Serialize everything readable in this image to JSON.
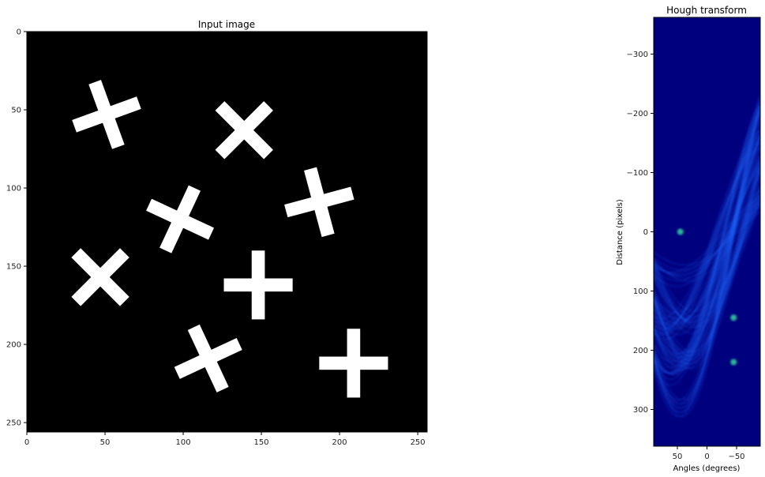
{
  "chart_data": [
    {
      "type": "image",
      "title": "Input image",
      "xlabel": "",
      "ylabel": "",
      "xlim": [
        0,
        256
      ],
      "ylim": [
        256,
        0
      ],
      "xticks": [
        0,
        50,
        100,
        150,
        200,
        250
      ],
      "yticks": [
        0,
        50,
        100,
        150,
        200,
        250
      ],
      "background": "#000000",
      "foreground": "#ffffff",
      "crosses": [
        {
          "cx": 51,
          "cy": 53,
          "angle_deg": -20
        },
        {
          "cx": 139,
          "cy": 63,
          "angle_deg": 45
        },
        {
          "cx": 98,
          "cy": 120,
          "angle_deg": 25
        },
        {
          "cx": 187,
          "cy": 109,
          "angle_deg": -15
        },
        {
          "cx": 47,
          "cy": 157,
          "angle_deg": 45
        },
        {
          "cx": 148,
          "cy": 162,
          "angle_deg": 0
        },
        {
          "cx": 116,
          "cy": 209,
          "angle_deg": -25
        },
        {
          "cx": 209,
          "cy": 212,
          "angle_deg": 0
        }
      ]
    },
    {
      "type": "heatmap",
      "title": "Hough transform",
      "xlabel": "Angles (degrees)",
      "ylabel": "Distance (pixels)",
      "xlim": [
        90,
        -90
      ],
      "ylim": [
        362,
        -362
      ],
      "xticks": [
        50,
        0,
        -50
      ],
      "xtick_labels": [
        "50",
        "0",
        "−50"
      ],
      "yticks": [
        -300,
        -200,
        -100,
        0,
        100,
        200,
        300
      ],
      "ytick_labels": [
        "−300",
        "−200",
        "−100",
        "0",
        "100",
        "200",
        "300"
      ],
      "colormap": "jet",
      "background": "#00007f",
      "peaks": [
        {
          "angle_deg": -45,
          "distance": 145
        },
        {
          "angle_deg": -45,
          "distance": 220
        },
        {
          "angle_deg": 45,
          "distance": 0
        }
      ]
    }
  ]
}
